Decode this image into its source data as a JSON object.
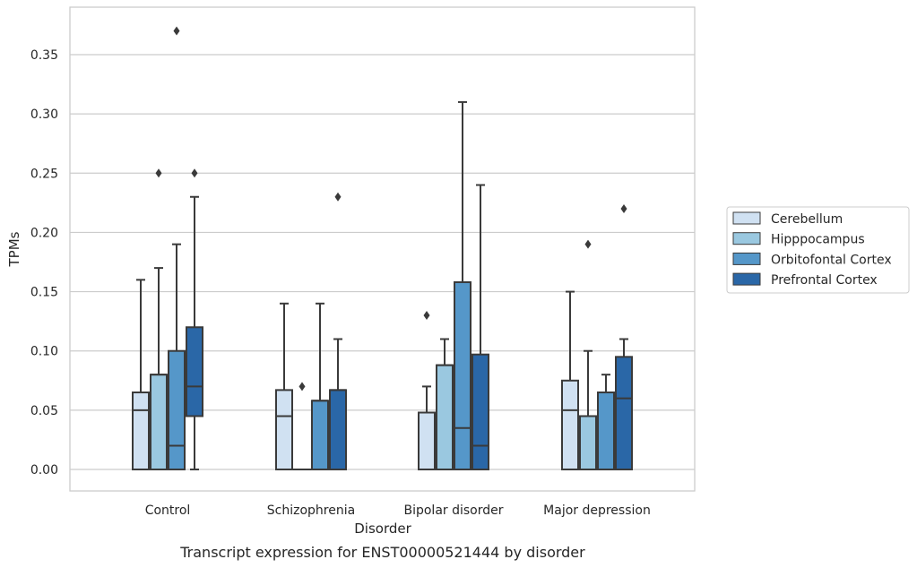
{
  "chart_data": {
    "type": "boxplot",
    "caption": "Transcript expression for ENST00000521444 by disorder",
    "xlabel": "Disorder",
    "ylabel": "TPMs",
    "ylim": [
      -0.018,
      0.388
    ],
    "yticks": [
      0.0,
      0.05,
      0.1,
      0.15,
      0.2,
      0.25,
      0.3,
      0.35
    ],
    "ytick_labels": [
      "0.00",
      "0.05",
      "0.10",
      "0.15",
      "0.20",
      "0.25",
      "0.30",
      "0.35"
    ],
    "grid": true,
    "legend_position": "right",
    "categories": [
      "Control",
      "Schizophrenia",
      "Bipolar disorder",
      "Major depression"
    ],
    "series": [
      {
        "name": "Cerebellum",
        "color": "#d0e1f2",
        "boxes": [
          {
            "q1": 0.0,
            "median": 0.05,
            "q3": 0.065,
            "whislo": 0.0,
            "whishi": 0.16,
            "fliers": []
          },
          {
            "q1": 0.0,
            "median": 0.045,
            "q3": 0.067,
            "whislo": 0.0,
            "whishi": 0.14,
            "fliers": []
          },
          {
            "q1": 0.0,
            "median": 0.048,
            "q3": 0.048,
            "whislo": 0.0,
            "whishi": 0.07,
            "fliers": [
              0.13
            ]
          },
          {
            "q1": 0.0,
            "median": 0.05,
            "q3": 0.075,
            "whislo": 0.0,
            "whishi": 0.15,
            "fliers": []
          }
        ]
      },
      {
        "name": "Hipppocampus",
        "color": "#9ac8e0",
        "boxes": [
          {
            "q1": 0.0,
            "median": 0.08,
            "q3": 0.08,
            "whislo": 0.0,
            "whishi": 0.17,
            "fliers": [
              0.25
            ]
          },
          {
            "q1": 0.0,
            "median": 0.0,
            "q3": 0.0,
            "whislo": 0.0,
            "whishi": 0.0,
            "fliers": [
              0.07
            ]
          },
          {
            "q1": 0.0,
            "median": 0.088,
            "q3": 0.088,
            "whislo": 0.0,
            "whishi": 0.11,
            "fliers": []
          },
          {
            "q1": 0.0,
            "median": 0.045,
            "q3": 0.045,
            "whislo": 0.0,
            "whishi": 0.1,
            "fliers": [
              0.19
            ]
          }
        ]
      },
      {
        "name": "Orbitofontal Cortex",
        "color": "#5597c9",
        "boxes": [
          {
            "q1": 0.0,
            "median": 0.02,
            "q3": 0.1,
            "whislo": 0.0,
            "whishi": 0.19,
            "fliers": [
              0.37
            ]
          },
          {
            "q1": 0.0,
            "median": 0.058,
            "q3": 0.058,
            "whislo": 0.0,
            "whishi": 0.14,
            "fliers": []
          },
          {
            "q1": 0.0,
            "median": 0.035,
            "q3": 0.158,
            "whislo": 0.0,
            "whishi": 0.31,
            "fliers": []
          },
          {
            "q1": 0.0,
            "median": 0.065,
            "q3": 0.065,
            "whislo": 0.0,
            "whishi": 0.08,
            "fliers": []
          }
        ]
      },
      {
        "name": "Prefrontal Cortex",
        "color": "#2a67a7",
        "boxes": [
          {
            "q1": 0.045,
            "median": 0.07,
            "q3": 0.12,
            "whislo": 0.0,
            "whishi": 0.23,
            "fliers": [
              0.25
            ]
          },
          {
            "q1": 0.0,
            "median": 0.067,
            "q3": 0.067,
            "whislo": 0.0,
            "whishi": 0.11,
            "fliers": [
              0.23
            ]
          },
          {
            "q1": 0.0,
            "median": 0.02,
            "q3": 0.097,
            "whislo": 0.0,
            "whishi": 0.24,
            "fliers": []
          },
          {
            "q1": 0.0,
            "median": 0.06,
            "q3": 0.095,
            "whislo": 0.0,
            "whishi": 0.11,
            "fliers": [
              0.22
            ]
          }
        ]
      }
    ],
    "edge_color": "#3a3a3a",
    "grid_color": "#cccccc",
    "axis_color": "#cccccc"
  }
}
